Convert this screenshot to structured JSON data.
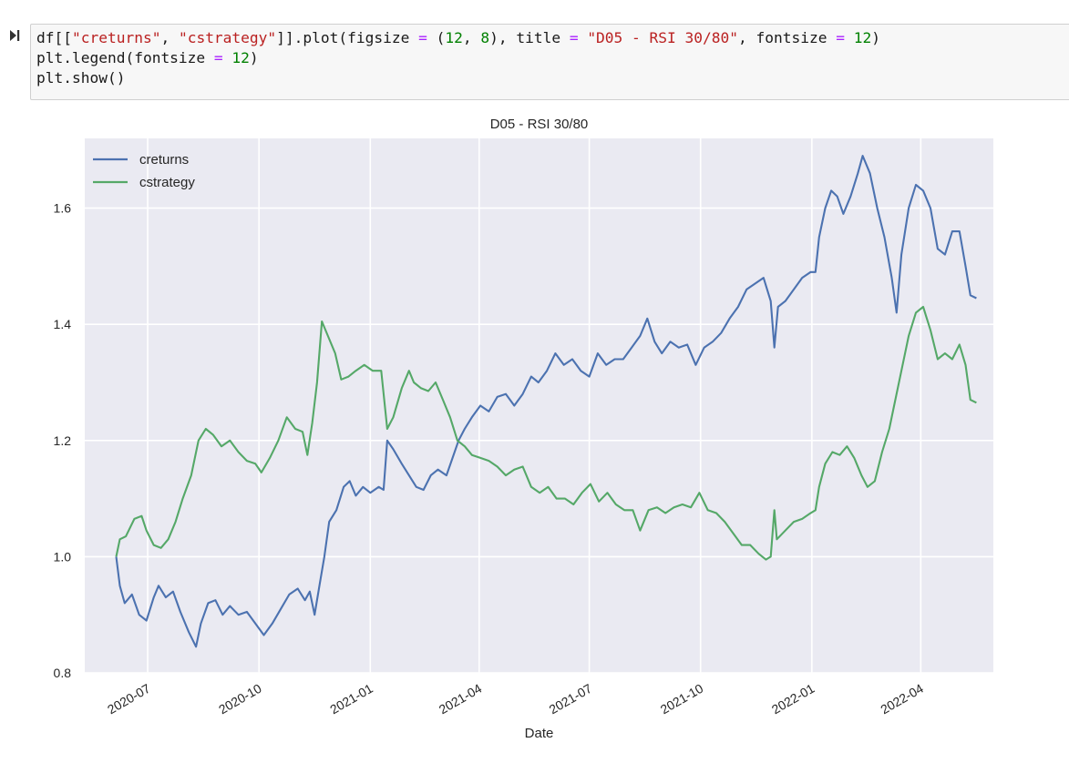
{
  "cell": {
    "run_icon": "run-cell-icon",
    "lines": [
      [
        {
          "t": "df[[",
          "c": ""
        },
        {
          "t": "\"creturns\"",
          "c": "str"
        },
        {
          "t": ", ",
          "c": ""
        },
        {
          "t": "\"cstrategy\"",
          "c": "str"
        },
        {
          "t": "]].plot(figsize ",
          "c": ""
        },
        {
          "t": "=",
          "c": "op"
        },
        {
          "t": " (",
          "c": ""
        },
        {
          "t": "12",
          "c": "num"
        },
        {
          "t": ", ",
          "c": ""
        },
        {
          "t": "8",
          "c": "num"
        },
        {
          "t": "), title ",
          "c": ""
        },
        {
          "t": "=",
          "c": "op"
        },
        {
          "t": " ",
          "c": ""
        },
        {
          "t": "\"D05 - RSI 30/80\"",
          "c": "str"
        },
        {
          "t": ", fontsize ",
          "c": ""
        },
        {
          "t": "=",
          "c": "op"
        },
        {
          "t": " ",
          "c": ""
        },
        {
          "t": "12",
          "c": "num"
        },
        {
          "t": ")",
          "c": ""
        }
      ],
      [
        {
          "t": "plt.legend(fontsize ",
          "c": ""
        },
        {
          "t": "=",
          "c": "op"
        },
        {
          "t": " ",
          "c": ""
        },
        {
          "t": "12",
          "c": "num"
        },
        {
          "t": ")",
          "c": ""
        }
      ],
      [
        {
          "t": "plt.show()",
          "c": ""
        }
      ]
    ]
  },
  "chart_data": {
    "type": "line",
    "title": "D05 - RSI 30/80",
    "xlabel": "Date",
    "ylabel": "",
    "ylim": [
      0.8,
      1.72
    ],
    "xlim": [
      "2020-05-10",
      "2022-05-31"
    ],
    "yticks": [
      0.8,
      1.0,
      1.2,
      1.4,
      1.6
    ],
    "ytick_labels": [
      "0.8",
      "1.0",
      "1.2",
      "1.4",
      "1.6"
    ],
    "xticks": [
      "2020-07-01",
      "2020-10-01",
      "2021-01-01",
      "2021-04-01",
      "2021-07-01",
      "2021-10-01",
      "2022-01-01",
      "2022-04-01"
    ],
    "xtick_labels": [
      "2020-07",
      "2020-10",
      "2021-01",
      "2021-04",
      "2021-07",
      "2021-10",
      "2022-01",
      "2022-04"
    ],
    "grid": true,
    "legend_position": "top-left",
    "series": [
      {
        "name": "creturns",
        "color": "#4c72b0",
        "points": [
          [
            "2020-06-05",
            1.0
          ],
          [
            "2020-06-08",
            0.95
          ],
          [
            "2020-06-12",
            0.92
          ],
          [
            "2020-06-18",
            0.935
          ],
          [
            "2020-06-24",
            0.9
          ],
          [
            "2020-06-30",
            0.89
          ],
          [
            "2020-07-06",
            0.93
          ],
          [
            "2020-07-10",
            0.95
          ],
          [
            "2020-07-16",
            0.93
          ],
          [
            "2020-07-22",
            0.94
          ],
          [
            "2020-07-28",
            0.905
          ],
          [
            "2020-08-04",
            0.87
          ],
          [
            "2020-08-10",
            0.845
          ],
          [
            "2020-08-14",
            0.885
          ],
          [
            "2020-08-20",
            0.92
          ],
          [
            "2020-08-26",
            0.925
          ],
          [
            "2020-09-01",
            0.9
          ],
          [
            "2020-09-07",
            0.915
          ],
          [
            "2020-09-14",
            0.9
          ],
          [
            "2020-09-21",
            0.905
          ],
          [
            "2020-09-28",
            0.885
          ],
          [
            "2020-10-05",
            0.865
          ],
          [
            "2020-10-12",
            0.885
          ],
          [
            "2020-10-19",
            0.91
          ],
          [
            "2020-10-26",
            0.935
          ],
          [
            "2020-11-02",
            0.945
          ],
          [
            "2020-11-08",
            0.925
          ],
          [
            "2020-11-12",
            0.94
          ],
          [
            "2020-11-16",
            0.9
          ],
          [
            "2020-11-20",
            0.95
          ],
          [
            "2020-11-24",
            1.0
          ],
          [
            "2020-11-28",
            1.06
          ],
          [
            "2020-12-04",
            1.08
          ],
          [
            "2020-12-10",
            1.12
          ],
          [
            "2020-12-15",
            1.13
          ],
          [
            "2020-12-20",
            1.105
          ],
          [
            "2020-12-26",
            1.12
          ],
          [
            "2021-01-01",
            1.11
          ],
          [
            "2021-01-08",
            1.12
          ],
          [
            "2021-01-12",
            1.115
          ],
          [
            "2021-01-15",
            1.2
          ],
          [
            "2021-01-20",
            1.185
          ],
          [
            "2021-01-27",
            1.16
          ],
          [
            "2021-02-02",
            1.14
          ],
          [
            "2021-02-08",
            1.12
          ],
          [
            "2021-02-14",
            1.115
          ],
          [
            "2021-02-20",
            1.14
          ],
          [
            "2021-02-26",
            1.15
          ],
          [
            "2021-03-05",
            1.14
          ],
          [
            "2021-03-10",
            1.17
          ],
          [
            "2021-03-15",
            1.2
          ],
          [
            "2021-03-20",
            1.22
          ],
          [
            "2021-03-26",
            1.24
          ],
          [
            "2021-04-02",
            1.26
          ],
          [
            "2021-04-09",
            1.25
          ],
          [
            "2021-04-16",
            1.275
          ],
          [
            "2021-04-23",
            1.28
          ],
          [
            "2021-04-30",
            1.26
          ],
          [
            "2021-05-07",
            1.28
          ],
          [
            "2021-05-14",
            1.31
          ],
          [
            "2021-05-20",
            1.3
          ],
          [
            "2021-05-27",
            1.32
          ],
          [
            "2021-06-03",
            1.35
          ],
          [
            "2021-06-10",
            1.33
          ],
          [
            "2021-06-17",
            1.34
          ],
          [
            "2021-06-24",
            1.32
          ],
          [
            "2021-07-01",
            1.31
          ],
          [
            "2021-07-08",
            1.35
          ],
          [
            "2021-07-15",
            1.33
          ],
          [
            "2021-07-22",
            1.34
          ],
          [
            "2021-07-29",
            1.34
          ],
          [
            "2021-08-05",
            1.36
          ],
          [
            "2021-08-12",
            1.38
          ],
          [
            "2021-08-18",
            1.41
          ],
          [
            "2021-08-24",
            1.37
          ],
          [
            "2021-08-30",
            1.35
          ],
          [
            "2021-09-06",
            1.37
          ],
          [
            "2021-09-13",
            1.36
          ],
          [
            "2021-09-20",
            1.365
          ],
          [
            "2021-09-27",
            1.33
          ],
          [
            "2021-10-04",
            1.36
          ],
          [
            "2021-10-11",
            1.37
          ],
          [
            "2021-10-18",
            1.385
          ],
          [
            "2021-10-25",
            1.41
          ],
          [
            "2021-11-01",
            1.43
          ],
          [
            "2021-11-08",
            1.46
          ],
          [
            "2021-11-15",
            1.47
          ],
          [
            "2021-11-22",
            1.48
          ],
          [
            "2021-11-28",
            1.44
          ],
          [
            "2021-12-01",
            1.36
          ],
          [
            "2021-12-04",
            1.43
          ],
          [
            "2021-12-10",
            1.44
          ],
          [
            "2021-12-17",
            1.46
          ],
          [
            "2021-12-24",
            1.48
          ],
          [
            "2021-12-31",
            1.49
          ],
          [
            "2022-01-04",
            1.49
          ],
          [
            "2022-01-07",
            1.55
          ],
          [
            "2022-01-12",
            1.6
          ],
          [
            "2022-01-17",
            1.63
          ],
          [
            "2022-01-22",
            1.62
          ],
          [
            "2022-01-27",
            1.59
          ],
          [
            "2022-02-02",
            1.62
          ],
          [
            "2022-02-08",
            1.66
          ],
          [
            "2022-02-12",
            1.69
          ],
          [
            "2022-02-18",
            1.66
          ],
          [
            "2022-02-24",
            1.6
          ],
          [
            "2022-03-02",
            1.55
          ],
          [
            "2022-03-08",
            1.48
          ],
          [
            "2022-03-12",
            1.42
          ],
          [
            "2022-03-16",
            1.52
          ],
          [
            "2022-03-22",
            1.6
          ],
          [
            "2022-03-28",
            1.64
          ],
          [
            "2022-04-03",
            1.63
          ],
          [
            "2022-04-09",
            1.6
          ],
          [
            "2022-04-15",
            1.53
          ],
          [
            "2022-04-21",
            1.52
          ],
          [
            "2022-04-27",
            1.56
          ],
          [
            "2022-05-03",
            1.56
          ],
          [
            "2022-05-08",
            1.5
          ],
          [
            "2022-05-12",
            1.45
          ],
          [
            "2022-05-17",
            1.445
          ]
        ]
      },
      {
        "name": "cstrategy",
        "color": "#55a868",
        "points": [
          [
            "2020-06-05",
            1.0
          ],
          [
            "2020-06-08",
            1.03
          ],
          [
            "2020-06-13",
            1.035
          ],
          [
            "2020-06-20",
            1.065
          ],
          [
            "2020-06-26",
            1.07
          ],
          [
            "2020-06-30",
            1.045
          ],
          [
            "2020-07-06",
            1.02
          ],
          [
            "2020-07-12",
            1.015
          ],
          [
            "2020-07-18",
            1.03
          ],
          [
            "2020-07-24",
            1.06
          ],
          [
            "2020-07-30",
            1.1
          ],
          [
            "2020-08-06",
            1.14
          ],
          [
            "2020-08-12",
            1.2
          ],
          [
            "2020-08-18",
            1.22
          ],
          [
            "2020-08-24",
            1.21
          ],
          [
            "2020-08-31",
            1.19
          ],
          [
            "2020-09-07",
            1.2
          ],
          [
            "2020-09-14",
            1.18
          ],
          [
            "2020-09-21",
            1.165
          ],
          [
            "2020-09-28",
            1.16
          ],
          [
            "2020-10-03",
            1.145
          ],
          [
            "2020-10-10",
            1.17
          ],
          [
            "2020-10-17",
            1.2
          ],
          [
            "2020-10-24",
            1.24
          ],
          [
            "2020-10-31",
            1.22
          ],
          [
            "2020-11-06",
            1.215
          ],
          [
            "2020-11-10",
            1.175
          ],
          [
            "2020-11-14",
            1.23
          ],
          [
            "2020-11-18",
            1.3
          ],
          [
            "2020-11-22",
            1.405
          ],
          [
            "2020-11-27",
            1.38
          ],
          [
            "2020-12-03",
            1.35
          ],
          [
            "2020-12-08",
            1.305
          ],
          [
            "2020-12-14",
            1.31
          ],
          [
            "2020-12-20",
            1.32
          ],
          [
            "2020-12-27",
            1.33
          ],
          [
            "2021-01-03",
            1.32
          ],
          [
            "2021-01-10",
            1.32
          ],
          [
            "2021-01-15",
            1.22
          ],
          [
            "2021-01-20",
            1.24
          ],
          [
            "2021-01-27",
            1.29
          ],
          [
            "2021-02-02",
            1.32
          ],
          [
            "2021-02-06",
            1.3
          ],
          [
            "2021-02-12",
            1.29
          ],
          [
            "2021-02-18",
            1.285
          ],
          [
            "2021-02-24",
            1.3
          ],
          [
            "2021-03-02",
            1.27
          ],
          [
            "2021-03-08",
            1.24
          ],
          [
            "2021-03-14",
            1.2
          ],
          [
            "2021-03-20",
            1.19
          ],
          [
            "2021-03-26",
            1.175
          ],
          [
            "2021-04-02",
            1.17
          ],
          [
            "2021-04-09",
            1.165
          ],
          [
            "2021-04-16",
            1.155
          ],
          [
            "2021-04-23",
            1.14
          ],
          [
            "2021-04-30",
            1.15
          ],
          [
            "2021-05-07",
            1.155
          ],
          [
            "2021-05-14",
            1.12
          ],
          [
            "2021-05-21",
            1.11
          ],
          [
            "2021-05-28",
            1.12
          ],
          [
            "2021-06-04",
            1.1
          ],
          [
            "2021-06-11",
            1.1
          ],
          [
            "2021-06-18",
            1.09
          ],
          [
            "2021-06-25",
            1.11
          ],
          [
            "2021-07-02",
            1.125
          ],
          [
            "2021-07-09",
            1.095
          ],
          [
            "2021-07-16",
            1.11
          ],
          [
            "2021-07-23",
            1.09
          ],
          [
            "2021-07-30",
            1.08
          ],
          [
            "2021-08-06",
            1.08
          ],
          [
            "2021-08-12",
            1.045
          ],
          [
            "2021-08-19",
            1.08
          ],
          [
            "2021-08-26",
            1.085
          ],
          [
            "2021-09-02",
            1.075
          ],
          [
            "2021-09-09",
            1.085
          ],
          [
            "2021-09-16",
            1.09
          ],
          [
            "2021-09-23",
            1.085
          ],
          [
            "2021-09-30",
            1.11
          ],
          [
            "2021-10-07",
            1.08
          ],
          [
            "2021-10-14",
            1.075
          ],
          [
            "2021-10-21",
            1.06
          ],
          [
            "2021-10-28",
            1.04
          ],
          [
            "2021-11-04",
            1.02
          ],
          [
            "2021-11-11",
            1.02
          ],
          [
            "2021-11-18",
            1.005
          ],
          [
            "2021-11-24",
            0.995
          ],
          [
            "2021-11-28",
            1.0
          ],
          [
            "2021-12-01",
            1.08
          ],
          [
            "2021-12-03",
            1.03
          ],
          [
            "2021-12-10",
            1.045
          ],
          [
            "2021-12-17",
            1.06
          ],
          [
            "2021-12-24",
            1.065
          ],
          [
            "2021-12-31",
            1.075
          ],
          [
            "2022-01-04",
            1.08
          ],
          [
            "2022-01-07",
            1.12
          ],
          [
            "2022-01-12",
            1.16
          ],
          [
            "2022-01-18",
            1.18
          ],
          [
            "2022-01-24",
            1.175
          ],
          [
            "2022-01-30",
            1.19
          ],
          [
            "2022-02-05",
            1.17
          ],
          [
            "2022-02-11",
            1.14
          ],
          [
            "2022-02-16",
            1.12
          ],
          [
            "2022-02-22",
            1.13
          ],
          [
            "2022-02-28",
            1.18
          ],
          [
            "2022-03-06",
            1.22
          ],
          [
            "2022-03-10",
            1.26
          ],
          [
            "2022-03-16",
            1.32
          ],
          [
            "2022-03-22",
            1.38
          ],
          [
            "2022-03-28",
            1.42
          ],
          [
            "2022-04-03",
            1.43
          ],
          [
            "2022-04-09",
            1.39
          ],
          [
            "2022-04-15",
            1.34
          ],
          [
            "2022-04-21",
            1.35
          ],
          [
            "2022-04-27",
            1.34
          ],
          [
            "2022-05-03",
            1.365
          ],
          [
            "2022-05-08",
            1.33
          ],
          [
            "2022-05-12",
            1.27
          ],
          [
            "2022-05-17",
            1.265
          ]
        ]
      }
    ]
  }
}
